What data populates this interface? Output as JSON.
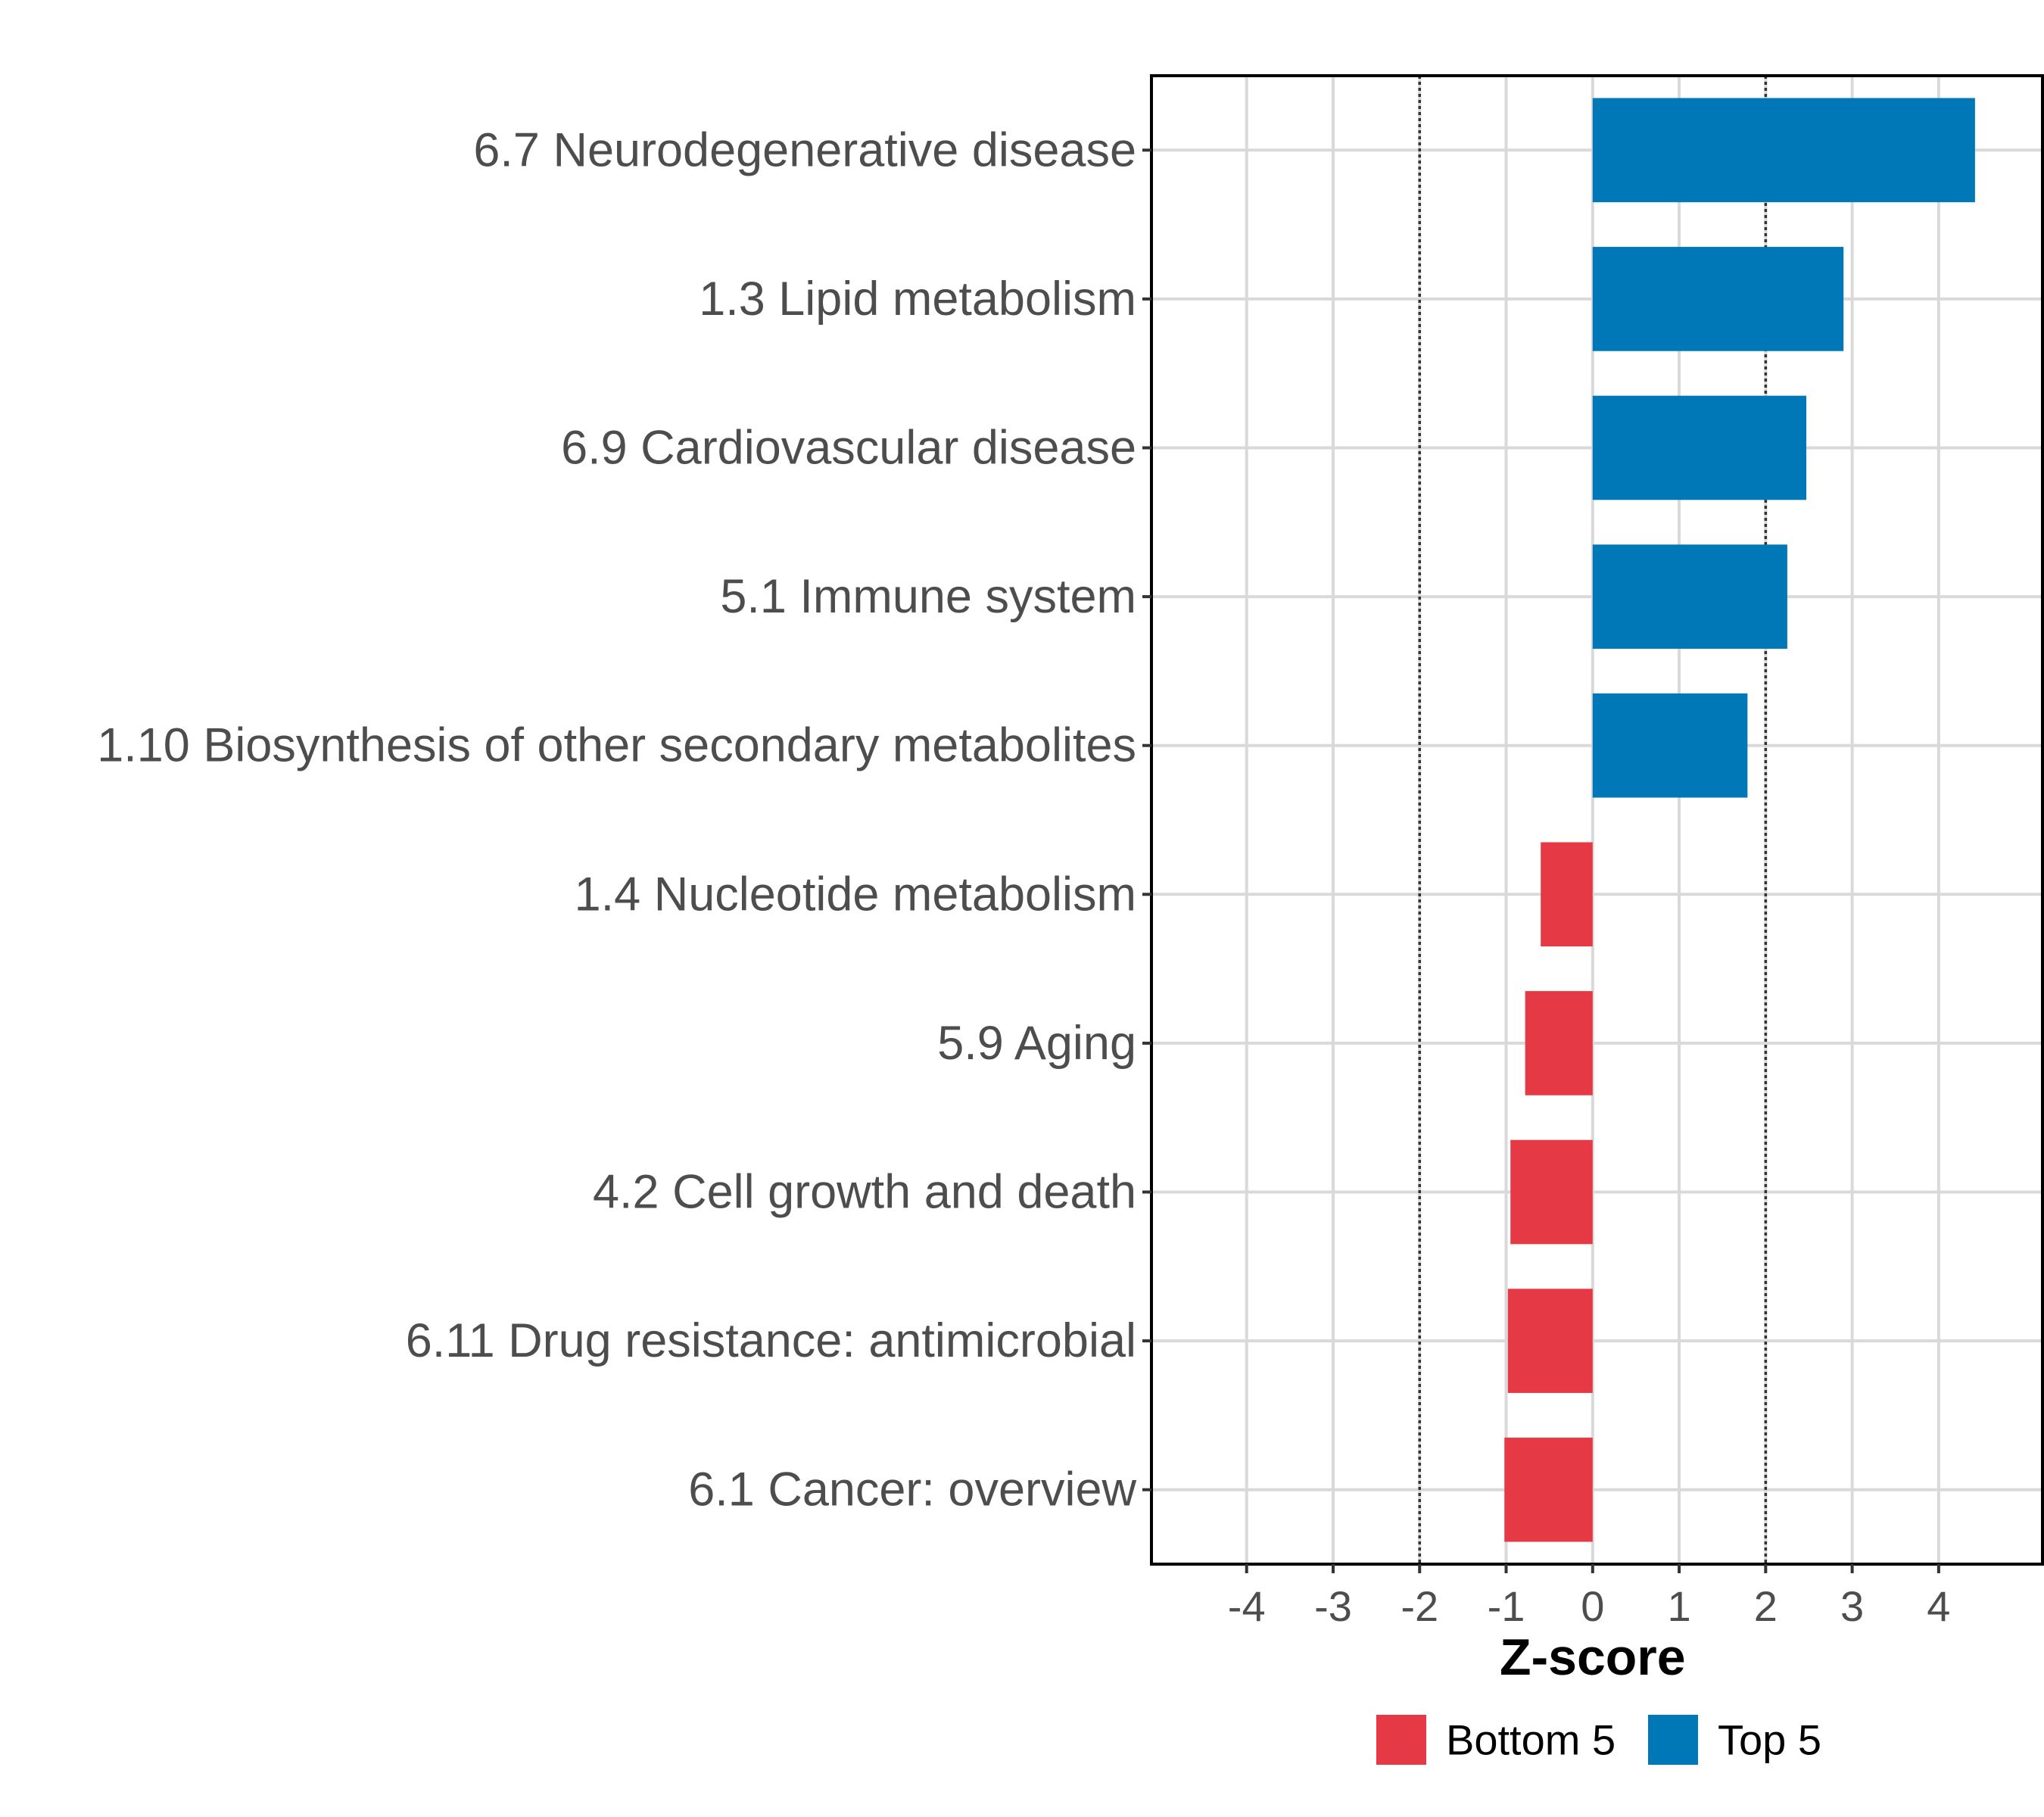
{
  "chart_data": {
    "type": "bar",
    "orientation": "horizontal",
    "title": "",
    "xlabel": "Z-score",
    "ylabel": "",
    "xlim": [
      -5.1,
      5.2
    ],
    "xticks": [
      -4,
      -3,
      -2,
      -1,
      0,
      1,
      2,
      3,
      4
    ],
    "xtick_labels": [
      "-4",
      "-3",
      "-2",
      "-1",
      "0",
      "1",
      "2",
      "3",
      "4"
    ],
    "reference_lines": [
      -2,
      2
    ],
    "grid": true,
    "legend_position": "bottom",
    "legend": [
      {
        "name": "Bottom 5",
        "color": "#e63946"
      },
      {
        "name": "Top 5",
        "color": "#0077b6"
      }
    ],
    "categories": [
      "6.7 Neurodegenerative disease",
      "1.3 Lipid metabolism",
      "6.9 Cardiovascular disease",
      "5.1 Immune system",
      "1.10 Biosynthesis of other secondary metabolites",
      "1.4 Nucleotide metabolism",
      "5.9 Aging",
      "4.2 Cell growth and death",
      "6.11 Drug resistance: antimicrobial",
      "6.1 Cancer: overview"
    ],
    "values": [
      4.42,
      2.9,
      2.47,
      2.25,
      1.79,
      -0.6,
      -0.78,
      -0.95,
      -0.98,
      -1.02
    ],
    "groups": [
      "Top 5",
      "Top 5",
      "Top 5",
      "Top 5",
      "Top 5",
      "Bottom 5",
      "Bottom 5",
      "Bottom 5",
      "Bottom 5",
      "Bottom 5"
    ]
  }
}
